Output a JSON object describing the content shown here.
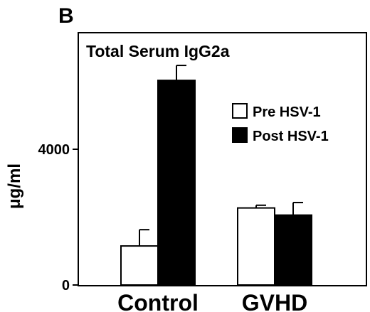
{
  "panel_label": "B",
  "chart_data": {
    "type": "bar",
    "title": "Total Serum IgG2a",
    "ylabel": "μg/ml",
    "xlabel": "",
    "categories": [
      "Control",
      "GVHD"
    ],
    "yticks": [
      0,
      4000
    ],
    "ylim": [
      0,
      6500
    ],
    "grid": false,
    "legend_position": "right",
    "series": [
      {
        "name": "Pre HSV-1",
        "fill": "#ffffff",
        "values": [
          1150,
          2270
        ],
        "errors": [
          480,
          80
        ]
      },
      {
        "name": "Post HSV-1",
        "fill": "#000000",
        "values": [
          6030,
          2060
        ],
        "errors": [
          440,
          370
        ]
      }
    ]
  }
}
